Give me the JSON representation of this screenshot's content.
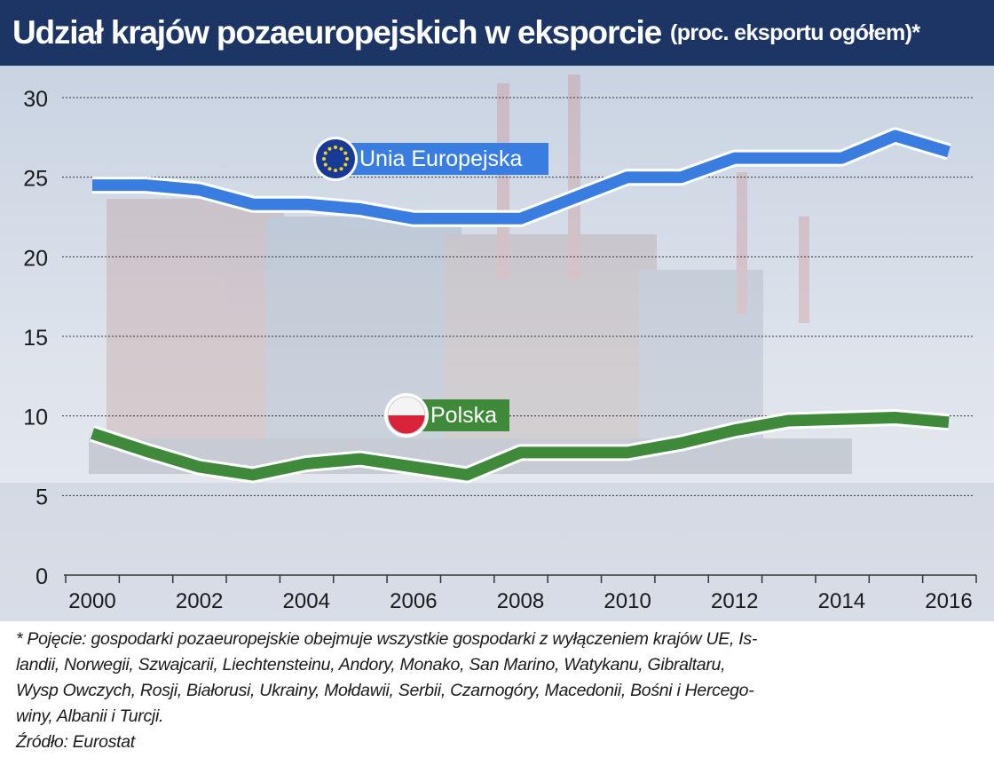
{
  "header": {
    "title": "Udział krajów pozaeuropejskich w eksporcie",
    "subtitle": "(proc. eksportu ogółem)*"
  },
  "chart_data": {
    "type": "line",
    "title": "Udział krajów pozaeuropejskich w eksporcie",
    "subtitle": "(proc. eksportu ogółem)*",
    "x": [
      2000,
      2001,
      2002,
      2003,
      2004,
      2005,
      2006,
      2007,
      2008,
      2009,
      2010,
      2011,
      2012,
      2013,
      2014,
      2015,
      2016
    ],
    "x_tick_labels": [
      "2000",
      "2002",
      "2004",
      "2006",
      "2008",
      "2010",
      "2012",
      "2014",
      "2016"
    ],
    "y_ticks": [
      0,
      5,
      10,
      15,
      20,
      25,
      30
    ],
    "ylim": [
      0,
      30
    ],
    "grid": true,
    "series": [
      {
        "name": "Unia Europejska",
        "color": "#3a7de0",
        "icon": "eu-flag-icon",
        "values": [
          24.5,
          24.5,
          24.2,
          23.3,
          23.3,
          23.0,
          22.4,
          22.4,
          22.4,
          23.7,
          25.0,
          25.0,
          26.2,
          26.2,
          26.2,
          27.6,
          26.6
        ]
      },
      {
        "name": "Polska",
        "color": "#3e8a3a",
        "icon": "poland-flag-icon",
        "values": [
          8.9,
          7.8,
          6.8,
          6.3,
          7.0,
          7.3,
          6.8,
          6.3,
          7.7,
          7.7,
          7.7,
          8.3,
          9.1,
          9.7,
          9.8,
          9.9,
          9.6
        ]
      }
    ]
  },
  "notes": {
    "lines": [
      "* Pojęcie: gospodarki pozaeuropejskie obejmuje wszystkie gospodarki z wyłączeniem krajów UE, Is-",
      "landii, Norwegii, Szwajcarii, Liechtensteinu, Andory, Monako, San Marino, Watykanu, Gibraltaru,",
      "Wysp Owczych, Rosji, Białorusi, Ukrainy, Mołdawii, Serbii, Czarnogóry, Macedonii, Bośni i Hercego-",
      "winy, Albanii i Turcji."
    ],
    "source": "Źródło: Eurostat"
  },
  "colors": {
    "header_bg": "#1d3565",
    "eu_line": "#3a7de0",
    "pl_line": "#3e8a3a",
    "grid": "#333333"
  }
}
